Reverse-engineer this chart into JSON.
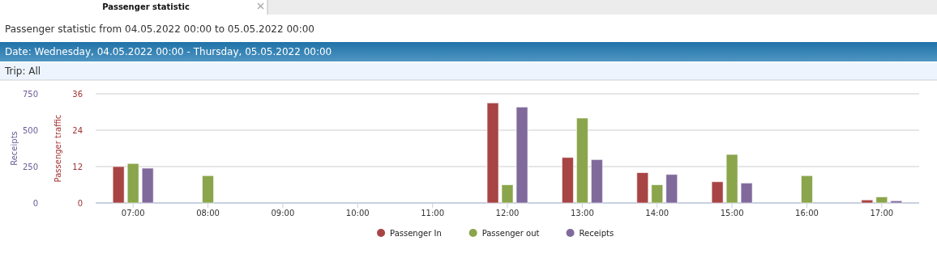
{
  "chart_data": {
    "type": "bar",
    "title": "Passenger statistic",
    "subtitle": "Passenger statistic from 04.05.2022 00:00 to 05.05.2022 00:00",
    "annotations": [
      "Date: Wednesday, 04.05.2022 00:00 - Thursday, 05.05.2022 00:00",
      "Trip: All"
    ],
    "ylabel": "Passenger traffic",
    "y2label": "Receipts",
    "categories": [
      "07:00",
      "08:00",
      "09:00",
      "10:00",
      "11:00",
      "12:00",
      "13:00",
      "14:00",
      "15:00",
      "16:00",
      "17:00"
    ],
    "series": [
      {
        "name": "Passenger In",
        "color": "#a84444",
        "values": [
          12,
          0,
          0,
          0,
          0,
          33,
          15,
          10,
          7,
          0,
          1
        ]
      },
      {
        "name": "Passenger out",
        "color": "#8aa54b",
        "values": [
          13,
          9,
          0,
          0,
          0,
          6,
          28,
          6,
          16,
          9,
          2
        ]
      },
      {
        "name": "Receipts",
        "color": "#806a9c",
        "axis": "y2",
        "values": [
          239,
          0,
          0,
          0,
          0,
          659,
          298,
          196,
          137,
          0,
          15
        ]
      }
    ],
    "ylim": [
      0,
      36
    ],
    "yticks": [
      0,
      12,
      24,
      36
    ],
    "y2lim": [
      0,
      750
    ],
    "y2ticks": [
      0,
      250,
      500,
      750
    ],
    "grid": "y",
    "legend": "bottom"
  }
}
